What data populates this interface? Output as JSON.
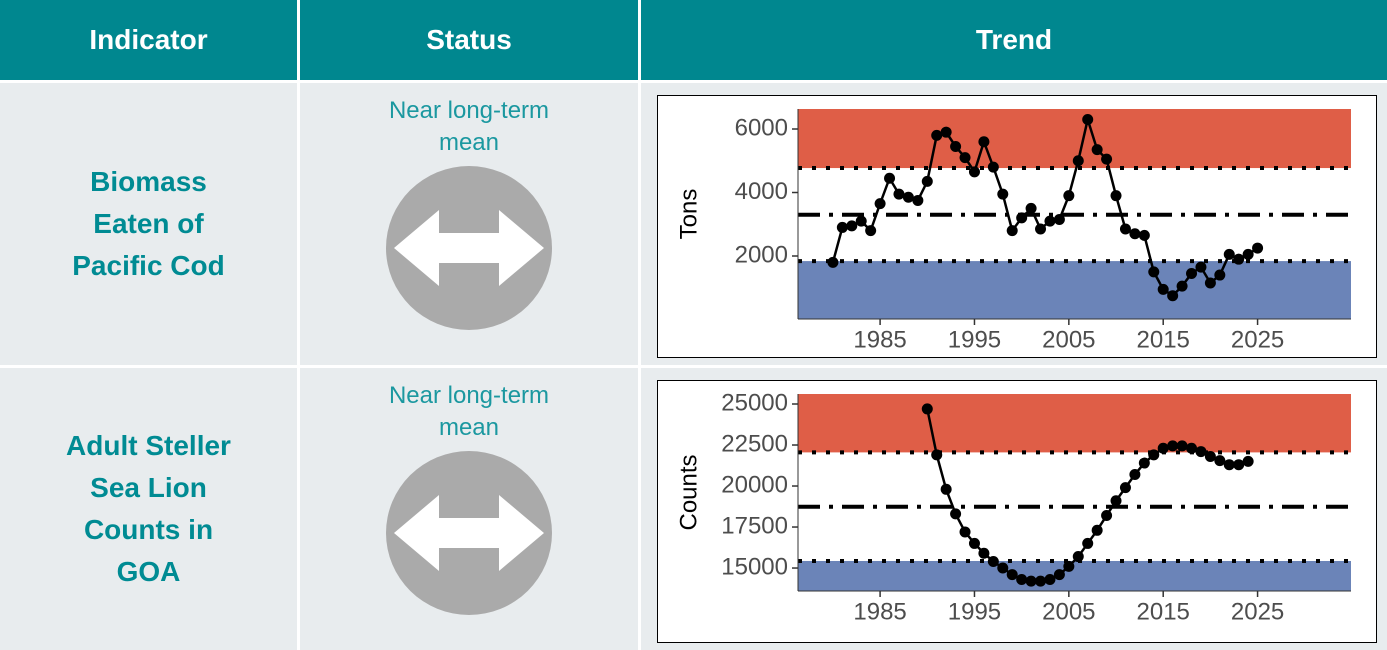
{
  "table": {
    "headers": [
      "Indicator",
      "Status",
      "Trend"
    ],
    "rows": [
      {
        "indicator": "Biomass Eaten of Pacific Cod",
        "status": "Near long-term mean"
      },
      {
        "indicator": "Adult Steller Sea Lion Counts in GOA",
        "status": "Near long-term mean"
      }
    ]
  },
  "chart_data": [
    {
      "type": "line",
      "ylabel": "Tons",
      "color": "#000000",
      "x": [
        1980,
        1981,
        1982,
        1983,
        1984,
        1985,
        1986,
        1987,
        1988,
        1989,
        1990,
        1991,
        1992,
        1993,
        1994,
        1995,
        1996,
        1997,
        1998,
        1999,
        2000,
        2001,
        2002,
        2003,
        2004,
        2005,
        2006,
        2007,
        2008,
        2009,
        2010,
        2011,
        2012,
        2013,
        2014,
        2015,
        2016,
        2017,
        2018,
        2019,
        2020,
        2021,
        2022,
        2023,
        2024,
        2025
      ],
      "values": [
        1800,
        2900,
        2950,
        3100,
        2800,
        3650,
        4450,
        3950,
        3850,
        3750,
        4350,
        5800,
        5900,
        5450,
        5100,
        4650,
        5600,
        4800,
        3950,
        2800,
        3200,
        3500,
        2850,
        3100,
        3150,
        3900,
        5000,
        6300,
        5350,
        5050,
        3900,
        2850,
        2700,
        2650,
        1500,
        950,
        750,
        1050,
        1450,
        1650,
        1150,
        1400,
        2050,
        1900,
        2050,
        2250
      ],
      "xlim": [
        1976.3,
        2034.9
      ],
      "xticks": [
        1985,
        1995,
        2005,
        2015,
        2025
      ],
      "ylim": [
        16,
        6630
      ],
      "yticks": [
        2000,
        4000,
        6000
      ],
      "mean": 3300,
      "upper": 4770,
      "lower": 1840,
      "upper_color": "#df5e47",
      "lower_color": "#6b84b8"
    },
    {
      "type": "line",
      "ylabel": "Counts",
      "color": "#000000",
      "x": [
        1990,
        1991,
        1992,
        1993,
        1994,
        1995,
        1996,
        1997,
        1998,
        1999,
        2000,
        2001,
        2002,
        2003,
        2004,
        2005,
        2006,
        2007,
        2008,
        2009,
        2010,
        2011,
        2012,
        2013,
        2014,
        2015,
        2016,
        2017,
        2018,
        2019,
        2020,
        2021,
        2022,
        2023,
        2024
      ],
      "values": [
        24700,
        21900,
        19800,
        18300,
        17200,
        16500,
        15900,
        15400,
        15000,
        14600,
        14300,
        14200,
        14200,
        14300,
        14600,
        15100,
        15700,
        16500,
        17300,
        18200,
        19100,
        19900,
        20700,
        21400,
        21900,
        22300,
        22450,
        22450,
        22300,
        22100,
        21800,
        21550,
        21300,
        21300,
        21500
      ],
      "xlim": [
        1976.3,
        2034.9
      ],
      "xticks": [
        1985,
        1995,
        2005,
        2015,
        2025
      ],
      "ylim": [
        13600,
        25610
      ],
      "yticks": [
        15000,
        17500,
        20000,
        22500,
        25000
      ],
      "mean": 18740,
      "upper": 22050,
      "lower": 15430,
      "upper_color": "#df5e47",
      "lower_color": "#6b84b8"
    }
  ]
}
